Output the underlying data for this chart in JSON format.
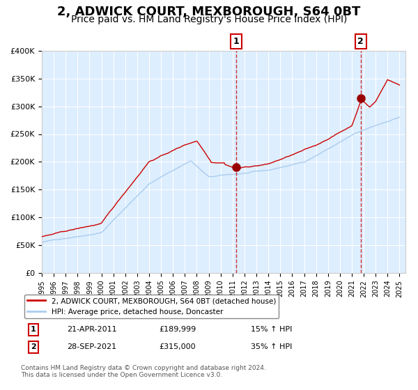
{
  "title": "2, ADWICK COURT, MEXBOROUGH, S64 0BT",
  "subtitle": "Price paid vs. HM Land Registry's House Price Index (HPI)",
  "title_fontsize": 13,
  "subtitle_fontsize": 10,
  "ylabel_ticks": [
    "£0",
    "£50K",
    "£100K",
    "£150K",
    "£200K",
    "£250K",
    "£300K",
    "£350K",
    "£400K"
  ],
  "ylabel_values": [
    0,
    50000,
    100000,
    150000,
    200000,
    250000,
    300000,
    350000,
    400000
  ],
  "ylim": [
    0,
    400000
  ],
  "background_color": "#ffffff",
  "plot_bg_color": "#ddeeff",
  "grid_color": "#ffffff",
  "legend_label_red": "2, ADWICK COURT, MEXBOROUGH, S64 0BT (detached house)",
  "legend_label_blue": "HPI: Average price, detached house, Doncaster",
  "sale1_label": "1",
  "sale1_date": "21-APR-2011",
  "sale1_price": "£189,999",
  "sale1_pct": "15% ↑ HPI",
  "sale2_label": "2",
  "sale2_date": "28-SEP-2021",
  "sale2_price": "£315,000",
  "sale2_pct": "35% ↑ HPI",
  "footnote": "Contains HM Land Registry data © Crown copyright and database right 2024.\nThis data is licensed under the Open Government Licence v3.0.",
  "red_color": "#cc0000",
  "blue_color": "#aaccee",
  "marker_color": "#990000",
  "sale1_year": 2011.3,
  "sale2_year": 2021.75
}
